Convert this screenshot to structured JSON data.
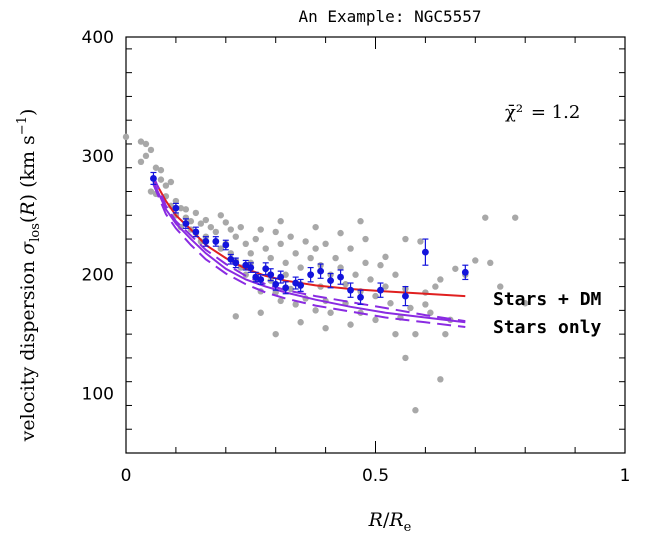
{
  "chart_data": {
    "type": "scatter",
    "title": "An Example: NGC5557",
    "xlabel": "R/R_e",
    "ylabel": "velocity dispersion σ_los(R) (km s^-1)",
    "xlim": [
      0,
      1
    ],
    "ylim": [
      50,
      400
    ],
    "x_ticks": [
      0,
      0.5,
      1
    ],
    "x_tick_labels": [
      "0",
      "0.5",
      "1"
    ],
    "y_ticks": [
      100,
      200,
      300,
      400
    ],
    "y_tick_labels": [
      "100",
      "200",
      "300",
      "400"
    ],
    "grid": false,
    "annotation_chi2": {
      "symbol": "χ̄²",
      "value": "= 1.2"
    },
    "colors": {
      "scatter": "#a8a8a8",
      "binned": "#1414dc",
      "stars_dm": "#e02020",
      "stars_only": "#8a2be2"
    },
    "series": [
      {
        "kind": "individual-measurements",
        "points": [
          [
            0.0,
            316
          ],
          [
            0.03,
            312
          ],
          [
            0.04,
            310
          ],
          [
            0.04,
            300
          ],
          [
            0.05,
            305
          ],
          [
            0.03,
            295
          ],
          [
            0.06,
            290
          ],
          [
            0.07,
            288
          ],
          [
            0.07,
            280
          ],
          [
            0.08,
            275
          ],
          [
            0.05,
            270
          ],
          [
            0.06,
            268
          ],
          [
            0.09,
            278
          ],
          [
            0.08,
            266
          ],
          [
            0.1,
            262
          ],
          [
            0.11,
            256
          ],
          [
            0.09,
            258
          ],
          [
            0.12,
            255
          ],
          [
            0.1,
            250
          ],
          [
            0.12,
            248
          ],
          [
            0.13,
            245
          ],
          [
            0.14,
            252
          ],
          [
            0.11,
            240
          ],
          [
            0.13,
            238
          ],
          [
            0.15,
            243
          ],
          [
            0.16,
            246
          ],
          [
            0.14,
            235
          ],
          [
            0.16,
            232
          ],
          [
            0.17,
            240
          ],
          [
            0.15,
            228
          ],
          [
            0.18,
            236
          ],
          [
            0.19,
            250
          ],
          [
            0.2,
            244
          ],
          [
            0.18,
            228
          ],
          [
            0.19,
            222
          ],
          [
            0.21,
            238
          ],
          [
            0.2,
            226
          ],
          [
            0.22,
            232
          ],
          [
            0.21,
            218
          ],
          [
            0.23,
            240
          ],
          [
            0.22,
            212
          ],
          [
            0.24,
            226
          ],
          [
            0.23,
            206
          ],
          [
            0.25,
            218
          ],
          [
            0.24,
            200
          ],
          [
            0.26,
            230
          ],
          [
            0.25,
            210
          ],
          [
            0.27,
            238
          ],
          [
            0.26,
            196
          ],
          [
            0.28,
            222
          ],
          [
            0.27,
            186
          ],
          [
            0.29,
            214
          ],
          [
            0.28,
            205
          ],
          [
            0.3,
            236
          ],
          [
            0.29,
            195
          ],
          [
            0.31,
            226
          ],
          [
            0.3,
            185
          ],
          [
            0.32,
            210
          ],
          [
            0.31,
            178
          ],
          [
            0.33,
            232
          ],
          [
            0.32,
            200
          ],
          [
            0.34,
            218
          ],
          [
            0.33,
            188
          ],
          [
            0.35,
            206
          ],
          [
            0.34,
            175
          ],
          [
            0.36,
            228
          ],
          [
            0.35,
            192
          ],
          [
            0.37,
            214
          ],
          [
            0.36,
            180
          ],
          [
            0.38,
            222
          ],
          [
            0.37,
            200
          ],
          [
            0.39,
            208
          ],
          [
            0.38,
            170
          ],
          [
            0.4,
            226
          ],
          [
            0.39,
            190
          ],
          [
            0.41,
            200
          ],
          [
            0.4,
            178
          ],
          [
            0.42,
            214
          ],
          [
            0.41,
            168
          ],
          [
            0.43,
            206
          ],
          [
            0.44,
            192
          ],
          [
            0.45,
            222
          ],
          [
            0.44,
            176
          ],
          [
            0.46,
            200
          ],
          [
            0.47,
            186
          ],
          [
            0.48,
            210
          ],
          [
            0.47,
            168
          ],
          [
            0.49,
            196
          ],
          [
            0.5,
            182
          ],
          [
            0.51,
            208
          ],
          [
            0.5,
            162
          ],
          [
            0.52,
            190
          ],
          [
            0.53,
            176
          ],
          [
            0.54,
            200
          ],
          [
            0.55,
            164
          ],
          [
            0.56,
            188
          ],
          [
            0.57,
            172
          ],
          [
            0.58,
            150
          ],
          [
            0.6,
            185
          ],
          [
            0.62,
            190
          ],
          [
            0.61,
            168
          ],
          [
            0.63,
            196
          ],
          [
            0.64,
            150
          ],
          [
            0.65,
            162
          ],
          [
            0.66,
            205
          ],
          [
            0.68,
            200
          ],
          [
            0.7,
            212
          ],
          [
            0.72,
            248
          ],
          [
            0.73,
            210
          ],
          [
            0.75,
            190
          ],
          [
            0.78,
            248
          ],
          [
            0.8,
            176
          ],
          [
            0.58,
            86
          ],
          [
            0.63,
            112
          ],
          [
            0.56,
            130
          ],
          [
            0.22,
            165
          ],
          [
            0.3,
            150
          ],
          [
            0.45,
            158
          ],
          [
            0.35,
            160
          ],
          [
            0.54,
            150
          ],
          [
            0.4,
            155
          ],
          [
            0.6,
            175
          ],
          [
            0.27,
            168
          ],
          [
            0.48,
            230
          ],
          [
            0.52,
            215
          ],
          [
            0.47,
            245
          ],
          [
            0.38,
            240
          ],
          [
            0.43,
            235
          ],
          [
            0.56,
            230
          ],
          [
            0.59,
            228
          ],
          [
            0.31,
            245
          ]
        ]
      },
      {
        "kind": "binned-profile",
        "points": [
          [
            0.055,
            281
          ],
          [
            0.1,
            256
          ],
          [
            0.12,
            243
          ],
          [
            0.14,
            236
          ],
          [
            0.16,
            228
          ],
          [
            0.18,
            228
          ],
          [
            0.2,
            225
          ],
          [
            0.21,
            213
          ],
          [
            0.22,
            210
          ],
          [
            0.24,
            208
          ],
          [
            0.25,
            206
          ],
          [
            0.26,
            198
          ],
          [
            0.27,
            196
          ],
          [
            0.28,
            205
          ],
          [
            0.29,
            200
          ],
          [
            0.31,
            198
          ],
          [
            0.3,
            192
          ],
          [
            0.32,
            189
          ],
          [
            0.34,
            193
          ],
          [
            0.35,
            191
          ],
          [
            0.37,
            200
          ],
          [
            0.39,
            203
          ],
          [
            0.41,
            195
          ],
          [
            0.43,
            198
          ],
          [
            0.45,
            187
          ],
          [
            0.47,
            181
          ],
          [
            0.51,
            187
          ],
          [
            0.56,
            182
          ],
          [
            0.6,
            219
          ],
          [
            0.68,
            202
          ]
        ],
        "errors": [
          [
            0.055,
            5
          ],
          [
            0.1,
            4
          ],
          [
            0.12,
            4
          ],
          [
            0.14,
            4
          ],
          [
            0.16,
            4
          ],
          [
            0.18,
            4
          ],
          [
            0.2,
            4
          ],
          [
            0.21,
            4
          ],
          [
            0.22,
            4
          ],
          [
            0.24,
            4
          ],
          [
            0.25,
            4
          ],
          [
            0.26,
            4
          ],
          [
            0.27,
            4
          ],
          [
            0.28,
            5
          ],
          [
            0.29,
            5
          ],
          [
            0.31,
            5
          ],
          [
            0.3,
            5
          ],
          [
            0.32,
            5
          ],
          [
            0.34,
            5
          ],
          [
            0.35,
            5
          ],
          [
            0.37,
            6
          ],
          [
            0.39,
            6
          ],
          [
            0.41,
            6
          ],
          [
            0.43,
            6
          ],
          [
            0.45,
            6
          ],
          [
            0.47,
            6
          ],
          [
            0.51,
            6
          ],
          [
            0.56,
            8
          ],
          [
            0.6,
            11
          ],
          [
            0.68,
            6
          ]
        ]
      },
      {
        "name": "Stars + DM",
        "kind": "model-solid",
        "points": [
          [
            0.055,
            281
          ],
          [
            0.08,
            262
          ],
          [
            0.1,
            250
          ],
          [
            0.13,
            238
          ],
          [
            0.16,
            225
          ],
          [
            0.2,
            214
          ],
          [
            0.24,
            205
          ],
          [
            0.28,
            199
          ],
          [
            0.32,
            195
          ],
          [
            0.38,
            191
          ],
          [
            0.45,
            188
          ],
          [
            0.52,
            186
          ],
          [
            0.6,
            184
          ],
          [
            0.68,
            182
          ]
        ]
      },
      {
        "name": "Stars only",
        "kind": "model-solid",
        "points": [
          [
            0.055,
            278
          ],
          [
            0.08,
            255
          ],
          [
            0.1,
            243
          ],
          [
            0.13,
            230
          ],
          [
            0.16,
            218
          ],
          [
            0.2,
            205
          ],
          [
            0.24,
            196
          ],
          [
            0.28,
            190
          ],
          [
            0.32,
            185
          ],
          [
            0.38,
            179
          ],
          [
            0.45,
            173
          ],
          [
            0.52,
            168
          ],
          [
            0.6,
            164
          ],
          [
            0.68,
            160
          ]
        ]
      },
      {
        "kind": "model-dashed",
        "points": [
          [
            0.055,
            276
          ],
          [
            0.08,
            251
          ],
          [
            0.1,
            239
          ],
          [
            0.13,
            225
          ],
          [
            0.16,
            213
          ],
          [
            0.2,
            201
          ],
          [
            0.24,
            192
          ],
          [
            0.28,
            185
          ],
          [
            0.32,
            180
          ],
          [
            0.38,
            174
          ],
          [
            0.45,
            169
          ],
          [
            0.52,
            164
          ],
          [
            0.6,
            160
          ],
          [
            0.68,
            156
          ]
        ]
      },
      {
        "kind": "model-dashed",
        "points": [
          [
            0.055,
            283
          ],
          [
            0.08,
            258
          ],
          [
            0.1,
            245
          ],
          [
            0.13,
            233
          ],
          [
            0.16,
            221
          ],
          [
            0.2,
            209
          ],
          [
            0.24,
            199
          ],
          [
            0.28,
            192
          ],
          [
            0.32,
            187
          ],
          [
            0.38,
            182
          ],
          [
            0.45,
            177
          ],
          [
            0.52,
            172
          ],
          [
            0.6,
            166
          ],
          [
            0.68,
            161
          ]
        ]
      }
    ],
    "labels": [
      "Stars + DM",
      "Stars only"
    ]
  }
}
